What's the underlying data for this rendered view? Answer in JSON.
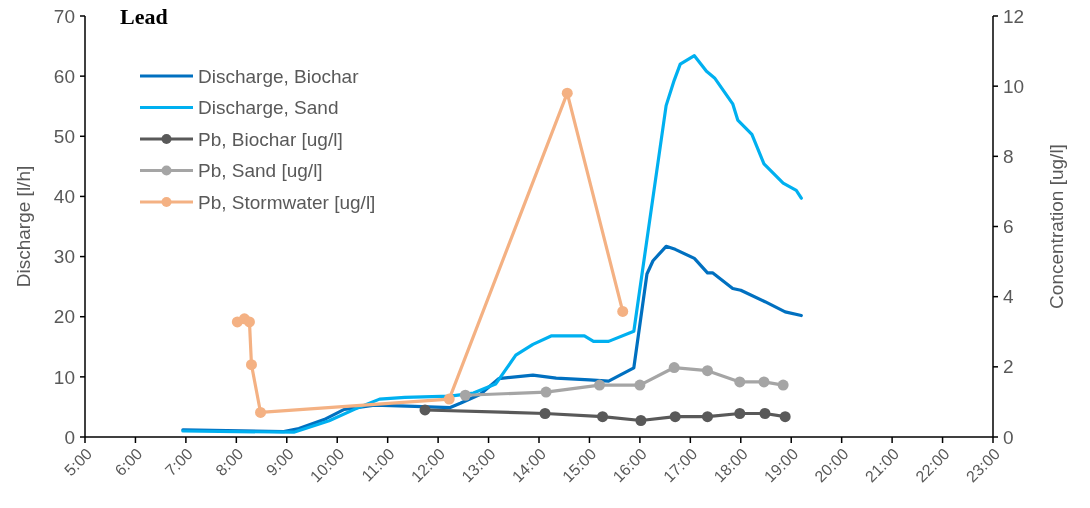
{
  "chart_data": {
    "type": "line",
    "title": "Lead",
    "ylabel": "Discharge [l/h]",
    "y2label": "Concentration [ug/l]",
    "xlim": [
      5,
      23
    ],
    "xticks": [
      {
        "value": 5,
        "label": "5:00"
      },
      {
        "value": 6,
        "label": "6:00"
      },
      {
        "value": 7,
        "label": "7:00"
      },
      {
        "value": 8,
        "label": "8:00"
      },
      {
        "value": 9,
        "label": "9:00"
      },
      {
        "value": 10,
        "label": "10:00"
      },
      {
        "value": 11,
        "label": "11:00"
      },
      {
        "value": 12,
        "label": "12:00"
      },
      {
        "value": 13,
        "label": "13:00"
      },
      {
        "value": 14,
        "label": "14:00"
      },
      {
        "value": 15,
        "label": "15:00"
      },
      {
        "value": 16,
        "label": "16:00"
      },
      {
        "value": 17,
        "label": "17:00"
      },
      {
        "value": 18,
        "label": "18:00"
      },
      {
        "value": 19,
        "label": "19:00"
      },
      {
        "value": 20,
        "label": "20:00"
      },
      {
        "value": 21,
        "label": "21:00"
      },
      {
        "value": 22,
        "label": "22:00"
      },
      {
        "value": 23,
        "label": "23:00"
      }
    ],
    "ylim": [
      0,
      70
    ],
    "yticks": [
      0,
      10,
      20,
      30,
      40,
      50,
      60,
      70
    ],
    "y2lim": [
      0,
      12
    ],
    "y2ticks": [
      0,
      2,
      4,
      6,
      8,
      10,
      12
    ],
    "grid": false,
    "legend": "top left",
    "series": [
      {
        "name": "Discharge, Biochar",
        "color": "#0070c0",
        "marker": "none",
        "x": [
          6.94,
          8.94,
          9.24,
          9.74,
          10.14,
          10.74,
          11.54,
          12.24,
          12.44,
          12.84,
          13.2,
          13.88,
          14.34,
          15.0,
          15.38,
          15.88,
          16.14,
          16.26,
          16.52,
          16.7,
          17.08,
          17.34,
          17.44,
          17.84,
          18.0,
          18.48,
          18.88,
          19.2
        ],
        "values": [
          1.2,
          0.9,
          1.4,
          2.9,
          4.6,
          5.3,
          5.1,
          4.9,
          5.6,
          7.1,
          9.7,
          10.3,
          9.8,
          9.5,
          9.3,
          11.5,
          27.1,
          29.3,
          31.7,
          31.2,
          29.7,
          27.3,
          27.3,
          24.7,
          24.4,
          22.5,
          20.8,
          20.2
        ]
      },
      {
        "name": "Discharge, Sand",
        "color": "#00b0f0",
        "marker": "none",
        "x": [
          6.94,
          9.14,
          9.84,
          10.34,
          10.84,
          11.34,
          12.24,
          12.7,
          13.14,
          13.54,
          13.88,
          14.24,
          14.9,
          15.08,
          15.38,
          15.88,
          16.52,
          16.68,
          16.8,
          17.08,
          17.32,
          17.48,
          17.84,
          17.94,
          18.22,
          18.46,
          18.84,
          19.1,
          19.2
        ],
        "values": [
          1.0,
          0.8,
          2.7,
          4.6,
          6.3,
          6.6,
          6.8,
          7.3,
          8.8,
          13.6,
          15.4,
          16.8,
          16.8,
          15.9,
          15.9,
          17.6,
          55.1,
          59.3,
          62.0,
          63.4,
          60.8,
          59.7,
          55.4,
          52.7,
          50.3,
          45.4,
          42.2,
          41.0,
          39.7
        ]
      },
      {
        "name": "Pb, Biochar [ug/l]",
        "color": "#595959",
        "marker": "circle",
        "axis": "y2",
        "x": [
          11.74,
          14.12,
          15.26,
          16.02,
          16.7,
          17.34,
          17.98,
          18.48,
          18.88
        ],
        "values": [
          0.77,
          0.67,
          0.58,
          0.47,
          0.58,
          0.58,
          0.67,
          0.67,
          0.58
        ]
      },
      {
        "name": "Pb, Sand [ug/l]",
        "color": "#a5a5a5",
        "marker": "circle",
        "axis": "y2",
        "x": [
          12.54,
          14.14,
          15.2,
          16.0,
          16.68,
          17.34,
          17.98,
          18.46,
          18.84
        ],
        "values": [
          1.19,
          1.28,
          1.48,
          1.48,
          1.98,
          1.89,
          1.57,
          1.57,
          1.48
        ]
      },
      {
        "name": "Pb, Stormwater [ug/l]",
        "color": "#f4b183",
        "marker": "circle",
        "axis": "y2",
        "x": [
          8.02,
          8.16,
          8.26,
          8.3,
          8.48,
          12.22,
          14.56,
          15.66
        ],
        "values": [
          3.28,
          3.37,
          3.28,
          2.06,
          0.7,
          1.08,
          9.8,
          3.58
        ]
      }
    ]
  }
}
